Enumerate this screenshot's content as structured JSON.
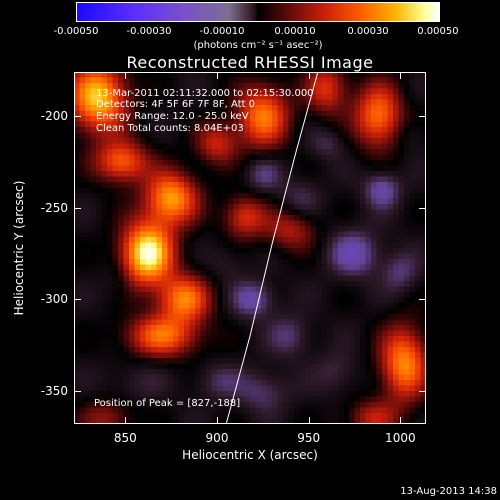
{
  "chart_data": {
    "type": "heatmap",
    "title": "Reconstructed RHESSI Image",
    "xlabel": "Heliocentric X (arcsec)",
    "ylabel": "Heliocentric Y (arcsec)",
    "xlim": [
      822,
      1014
    ],
    "ylim": [
      -368,
      -176
    ],
    "x_ticks": [
      850,
      900,
      950,
      1000
    ],
    "y_ticks": [
      -200,
      -250,
      -300,
      -350
    ],
    "colorbar": {
      "range": [
        -0.0005,
        0.0005
      ],
      "ticks": [
        "-0.00050",
        "-0.00030",
        "-0.00010",
        "0.00010",
        "0.00030",
        "0.00050"
      ],
      "unit_label": "(photons cm⁻² s⁻¹ asec⁻²)"
    },
    "info_lines": [
      "13-Mar-2011 02:11:32.000 to 02:15:30.000",
      "Detectors: 4F 5F 6F 7F 8F, Att 0",
      "Energy Range: 12.0 - 25.0 keV",
      "Clean     Total counts: 8.04E+03"
    ],
    "peak_label": "Position of Peak = [827,-188]",
    "peak": [
      827,
      -188
    ],
    "limb": [
      [
        955,
        -176
      ],
      [
        943,
        -220
      ],
      [
        930,
        -270
      ],
      [
        918,
        -320
      ],
      [
        905,
        -368
      ]
    ],
    "sources": [
      {
        "x": 862,
        "y": -275,
        "sx": 10,
        "sy": 12,
        "a": 1.0
      },
      {
        "x": 875,
        "y": -245,
        "sx": 10,
        "sy": 10,
        "a": 0.75
      },
      {
        "x": 848,
        "y": -225,
        "sx": 10,
        "sy": 8,
        "a": 0.6
      },
      {
        "x": 882,
        "y": -300,
        "sx": 10,
        "sy": 9,
        "a": 0.65
      },
      {
        "x": 870,
        "y": -320,
        "sx": 14,
        "sy": 8,
        "a": 0.6
      },
      {
        "x": 835,
        "y": -190,
        "sx": 11,
        "sy": 13,
        "a": 0.85
      },
      {
        "x": 900,
        "y": -215,
        "sx": 8,
        "sy": 8,
        "a": 0.4
      },
      {
        "x": 915,
        "y": -255,
        "sx": 8,
        "sy": 8,
        "a": 0.45
      },
      {
        "x": 925,
        "y": -200,
        "sx": 10,
        "sy": 12,
        "a": 0.65
      },
      {
        "x": 960,
        "y": -185,
        "sx": 8,
        "sy": 10,
        "a": 0.45
      },
      {
        "x": 988,
        "y": -200,
        "sx": 9,
        "sy": 12,
        "a": 0.65
      },
      {
        "x": 940,
        "y": -262,
        "sx": 10,
        "sy": 8,
        "a": 0.35
      },
      {
        "x": 1002,
        "y": -335,
        "sx": 9,
        "sy": 14,
        "a": 0.7
      },
      {
        "x": 985,
        "y": -365,
        "sx": 10,
        "sy": 7,
        "a": 0.35
      },
      {
        "x": 840,
        "y": -365,
        "sx": 10,
        "sy": 7,
        "a": 0.3
      },
      {
        "x": 925,
        "y": -232,
        "sx": 7,
        "sy": 7,
        "a": -0.2
      },
      {
        "x": 945,
        "y": -245,
        "sx": 8,
        "sy": 8,
        "a": -0.15
      },
      {
        "x": 990,
        "y": -240,
        "sx": 7,
        "sy": 7,
        "a": -0.3
      },
      {
        "x": 975,
        "y": -275,
        "sx": 10,
        "sy": 9,
        "a": -0.3
      },
      {
        "x": 920,
        "y": -300,
        "sx": 8,
        "sy": 7,
        "a": -0.3
      },
      {
        "x": 940,
        "y": -320,
        "sx": 8,
        "sy": 8,
        "a": -0.2
      },
      {
        "x": 965,
        "y": -340,
        "sx": 8,
        "sy": 8,
        "a": -0.15
      },
      {
        "x": 925,
        "y": -350,
        "sx": 10,
        "sy": 8,
        "a": -0.2
      },
      {
        "x": 1000,
        "y": -285,
        "sx": 7,
        "sy": 8,
        "a": -0.2
      },
      {
        "x": 855,
        "y": -345,
        "sx": 12,
        "sy": 8,
        "a": -0.1
      },
      {
        "x": 900,
        "y": -345,
        "sx": 9,
        "sy": 7,
        "a": -0.15
      },
      {
        "x": 905,
        "y": -280,
        "sx": 7,
        "sy": 7,
        "a": -0.1
      },
      {
        "x": 845,
        "y": -290,
        "sx": 6,
        "sy": 8,
        "a": -0.1
      },
      {
        "x": 960,
        "y": -215,
        "sx": 7,
        "sy": 6,
        "a": -0.15
      },
      {
        "x": 1005,
        "y": -210,
        "sx": 6,
        "sy": 6,
        "a": -0.1
      }
    ]
  },
  "footer_timestamp": "13-Aug-2013 14:38"
}
